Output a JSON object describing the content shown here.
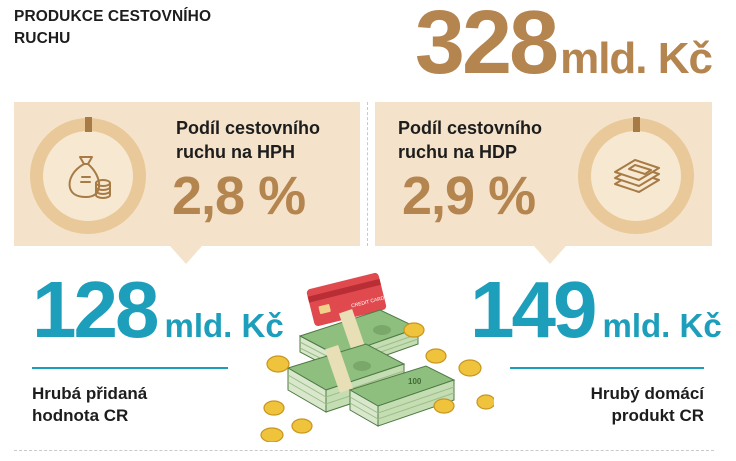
{
  "header": {
    "title_line1": "PRODUKCE CESTOVNÍHO",
    "title_line2": "RUCHU",
    "value": "328",
    "unit": "mld. Kč"
  },
  "left_panel": {
    "label_line1": "Podíl cestovního",
    "label_line2": "ruchu na HPH",
    "value": "2,8 %",
    "icon": "money-bag-coins-icon"
  },
  "right_panel": {
    "label_line1": "Podíl cestovního",
    "label_line2": "ruchu na HDP",
    "value": "2,9 %",
    "icon": "banknote-stack-icon"
  },
  "left_stat": {
    "value": "128",
    "unit": "mld. Kč",
    "label_line1": "Hrubá přidaná",
    "label_line2": "hodnota CR"
  },
  "right_stat": {
    "value": "149",
    "unit": "mld. Kč",
    "label_line1": "Hrubý domácí",
    "label_line2": "produkt CR"
  },
  "illustration": {
    "card_text": "CREDIT CARD",
    "note_value": "100"
  },
  "colors": {
    "accent_brown": "#b58550",
    "panel_beige": "#f4e3ca",
    "accent_teal": "#1d9fbc"
  }
}
